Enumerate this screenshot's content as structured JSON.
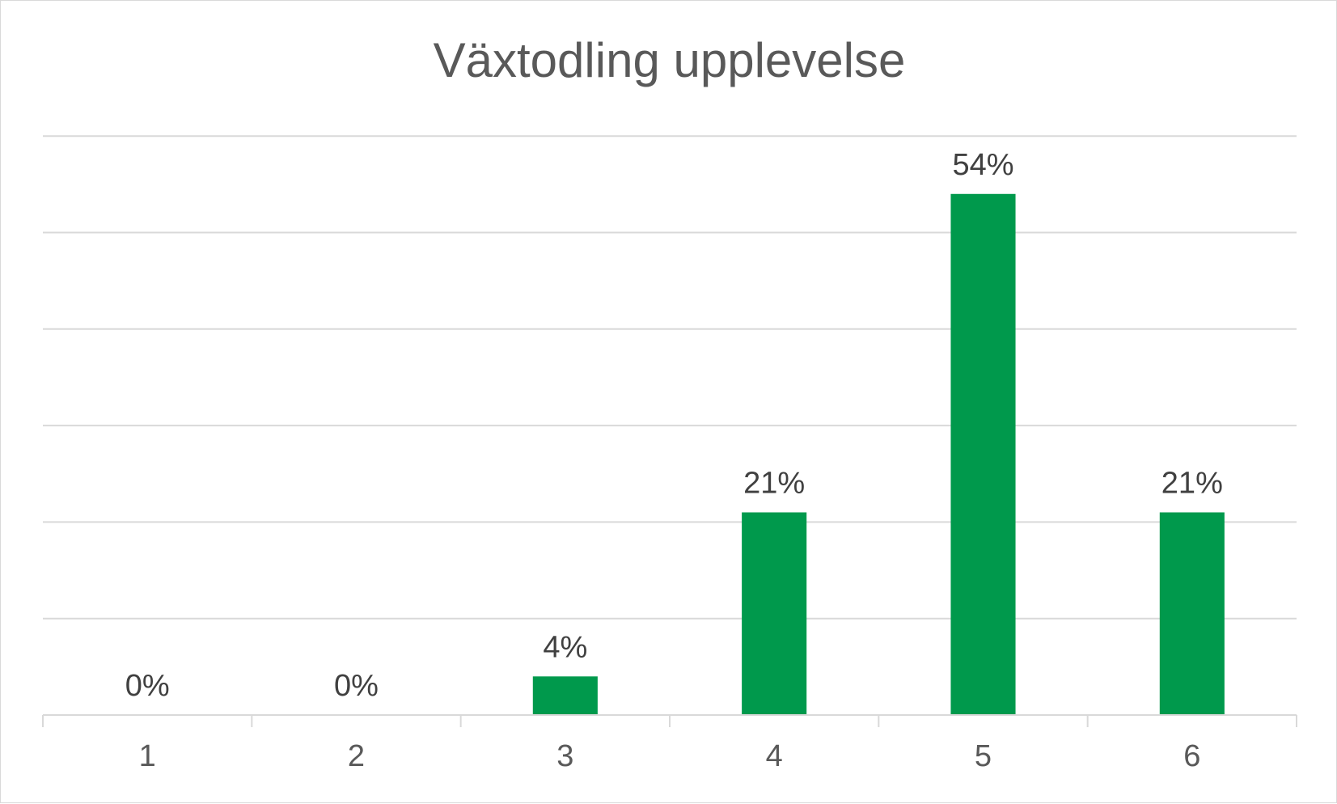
{
  "chart_data": {
    "type": "bar",
    "title": "Växtodling upplevelse",
    "categories": [
      "1",
      "2",
      "3",
      "4",
      "5",
      "6"
    ],
    "values": [
      0,
      0,
      4,
      21,
      54,
      21
    ],
    "data_labels": [
      "0%",
      "0%",
      "4%",
      "21%",
      "54%",
      "21%"
    ],
    "value_unit": "%",
    "ylim": [
      0,
      60
    ],
    "y_gridline_step": 10,
    "grid": true,
    "legend": "none",
    "xlabel": "",
    "ylabel": "",
    "bar_color": "#00994c"
  }
}
